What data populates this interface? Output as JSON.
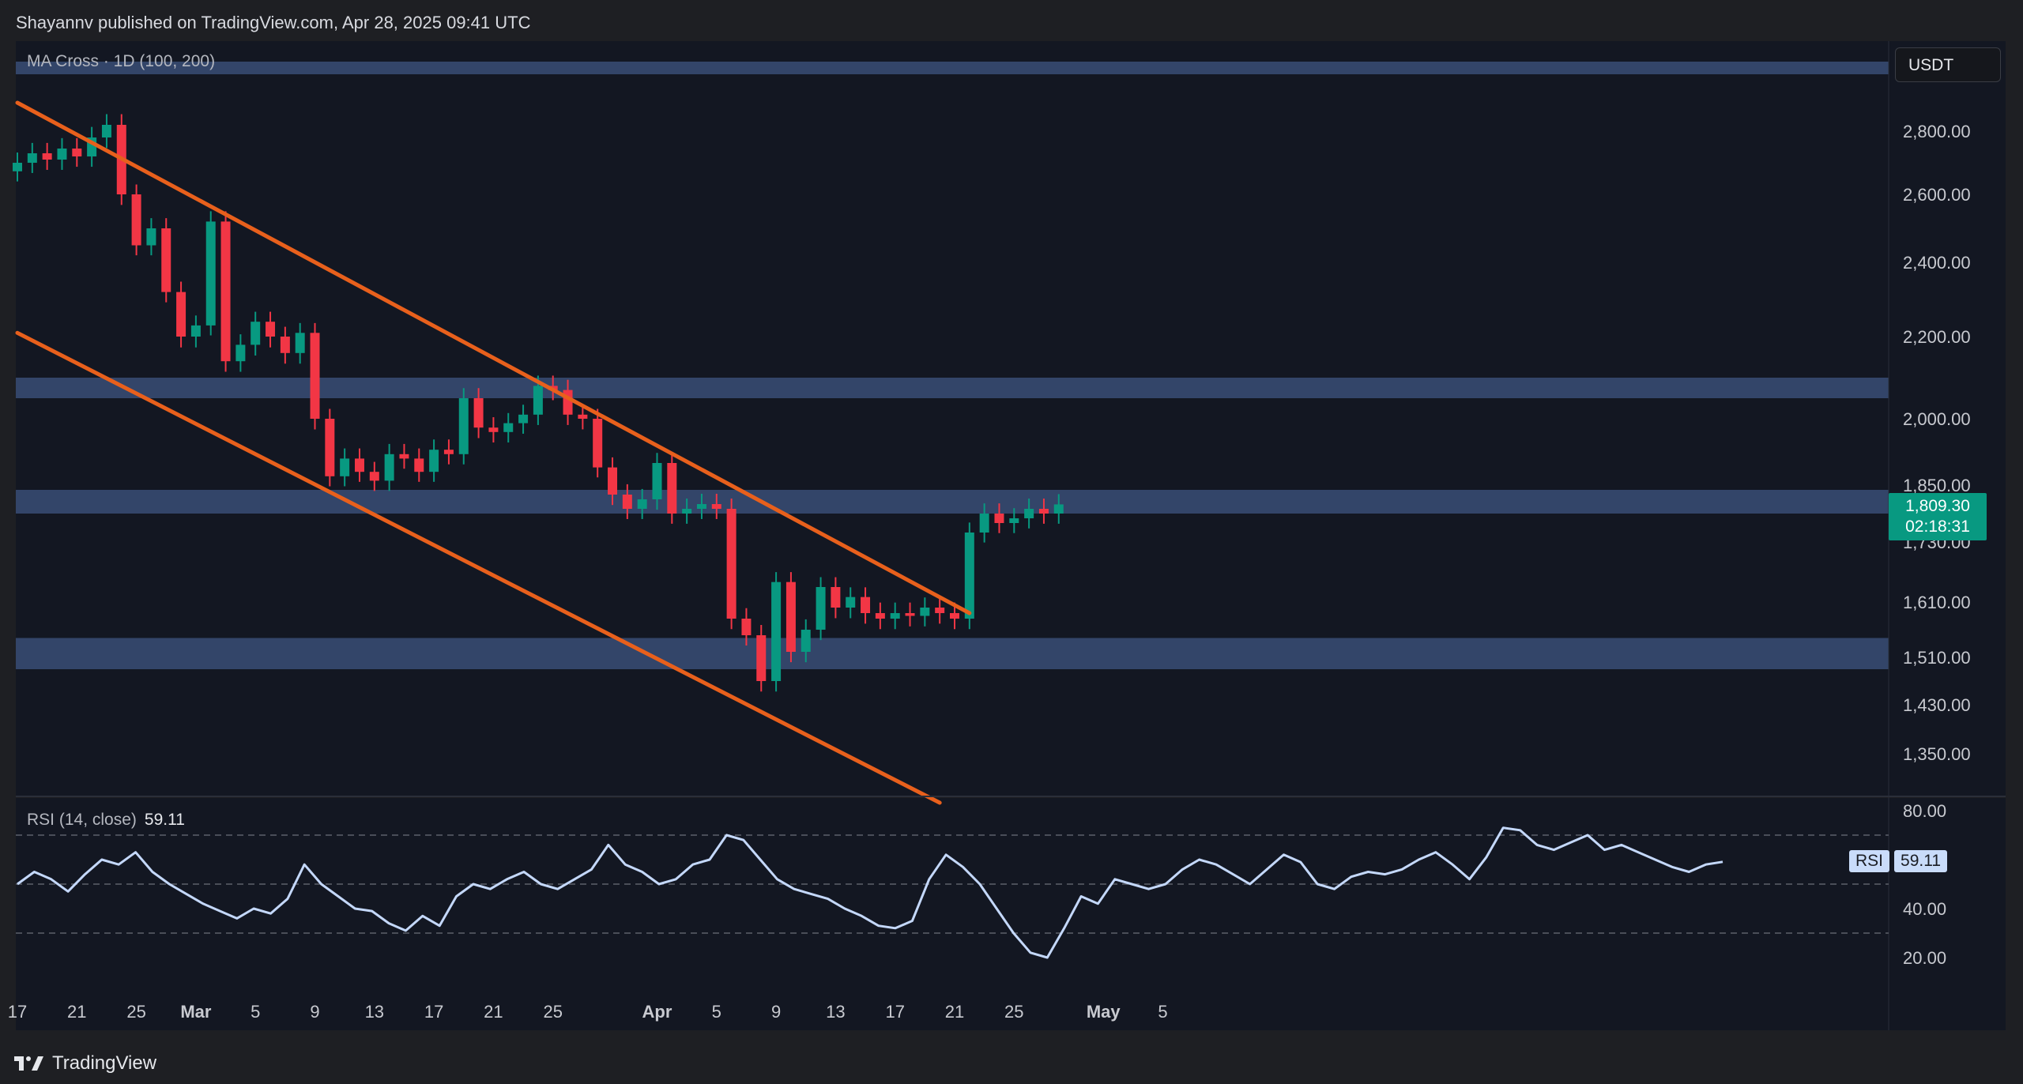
{
  "publisher_text": "Shayannv published on TradingView.com, Apr 28, 2025 09:41 UTC",
  "brand": "TradingView",
  "currency": "USDT",
  "price_indicator": {
    "label": "MA Cross · 1D (100, 200)"
  },
  "rsi_indicator": {
    "label": "RSI (14, close)",
    "value": "59.11",
    "tag_name": "RSI"
  },
  "last_price": {
    "price": "1,809.30",
    "countdown": "02:18:31"
  },
  "colors": {
    "background": "#131722",
    "frame": "#1e1f23",
    "up_candle": "#089981",
    "down_candle": "#f23645",
    "channel_line": "#e8601c",
    "zone_fill": "#3a4d75",
    "rsi_line": "#c4d8fb",
    "axis_text": "#c8cad0"
  },
  "chart_data": [
    {
      "type": "candlestick",
      "title": "MA Cross · 1D (100, 200)",
      "timeframe": "1D",
      "y_axis_ticks": [
        "2,800.00",
        "2,600.00",
        "2,400.00",
        "2,200.00",
        "2,000.00",
        "1,850.00",
        "1,730.00",
        "1,610.00",
        "1,510.00",
        "1,430.00",
        "1,350.00"
      ],
      "x_axis_ticks": [
        "17",
        "21",
        "25",
        "Mar",
        "5",
        "9",
        "13",
        "17",
        "21",
        "25",
        "Apr",
        "5",
        "9",
        "13",
        "17",
        "21",
        "25",
        "May",
        "5"
      ],
      "last_price": 1809.3,
      "series_close": [
        {
          "date": "2025-02-17",
          "close": 2700
        },
        {
          "date": "2025-02-18",
          "close": 2730
        },
        {
          "date": "2025-02-19",
          "close": 2710
        },
        {
          "date": "2025-02-20",
          "close": 2745
        },
        {
          "date": "2025-02-21",
          "close": 2720
        },
        {
          "date": "2025-02-22",
          "close": 2780
        },
        {
          "date": "2025-02-23",
          "close": 2820
        },
        {
          "date": "2025-02-24",
          "close": 2600
        },
        {
          "date": "2025-02-25",
          "close": 2450
        },
        {
          "date": "2025-02-26",
          "close": 2500
        },
        {
          "date": "2025-02-27",
          "close": 2320
        },
        {
          "date": "2025-02-28",
          "close": 2200
        },
        {
          "date": "2025-03-01",
          "close": 2230
        },
        {
          "date": "2025-03-02",
          "close": 2520
        },
        {
          "date": "2025-03-03",
          "close": 2140
        },
        {
          "date": "2025-03-04",
          "close": 2180
        },
        {
          "date": "2025-03-05",
          "close": 2240
        },
        {
          "date": "2025-03-06",
          "close": 2200
        },
        {
          "date": "2025-03-07",
          "close": 2160
        },
        {
          "date": "2025-03-08",
          "close": 2210
        },
        {
          "date": "2025-03-09",
          "close": 2000
        },
        {
          "date": "2025-03-10",
          "close": 1870
        },
        {
          "date": "2025-03-11",
          "close": 1910
        },
        {
          "date": "2025-03-12",
          "close": 1880
        },
        {
          "date": "2025-03-13",
          "close": 1860
        },
        {
          "date": "2025-03-14",
          "close": 1920
        },
        {
          "date": "2025-03-15",
          "close": 1910
        },
        {
          "date": "2025-03-16",
          "close": 1880
        },
        {
          "date": "2025-03-17",
          "close": 1930
        },
        {
          "date": "2025-03-18",
          "close": 1920
        },
        {
          "date": "2025-03-19",
          "close": 2050
        },
        {
          "date": "2025-03-20",
          "close": 1980
        },
        {
          "date": "2025-03-21",
          "close": 1970
        },
        {
          "date": "2025-03-22",
          "close": 1990
        },
        {
          "date": "2025-03-23",
          "close": 2010
        },
        {
          "date": "2025-03-24",
          "close": 2080
        },
        {
          "date": "2025-03-25",
          "close": 2070
        },
        {
          "date": "2025-03-26",
          "close": 2010
        },
        {
          "date": "2025-03-27",
          "close": 2000
        },
        {
          "date": "2025-03-28",
          "close": 1890
        },
        {
          "date": "2025-03-29",
          "close": 1830
        },
        {
          "date": "2025-03-30",
          "close": 1800
        },
        {
          "date": "2025-03-31",
          "close": 1820
        },
        {
          "date": "2025-04-01",
          "close": 1900
        },
        {
          "date": "2025-04-02",
          "close": 1790
        },
        {
          "date": "2025-04-03",
          "close": 1800
        },
        {
          "date": "2025-04-04",
          "close": 1810
        },
        {
          "date": "2025-04-05",
          "close": 1800
        },
        {
          "date": "2025-04-06",
          "close": 1580
        },
        {
          "date": "2025-04-07",
          "close": 1550
        },
        {
          "date": "2025-04-08",
          "close": 1470
        },
        {
          "date": "2025-04-09",
          "close": 1650
        },
        {
          "date": "2025-04-10",
          "close": 1520
        },
        {
          "date": "2025-04-11",
          "close": 1560
        },
        {
          "date": "2025-04-12",
          "close": 1640
        },
        {
          "date": "2025-04-13",
          "close": 1600
        },
        {
          "date": "2025-04-14",
          "close": 1620
        },
        {
          "date": "2025-04-15",
          "close": 1590
        },
        {
          "date": "2025-04-16",
          "close": 1580
        },
        {
          "date": "2025-04-17",
          "close": 1590
        },
        {
          "date": "2025-04-18",
          "close": 1585
        },
        {
          "date": "2025-04-19",
          "close": 1600
        },
        {
          "date": "2025-04-20",
          "close": 1590
        },
        {
          "date": "2025-04-21",
          "close": 1580
        },
        {
          "date": "2025-04-22",
          "close": 1750
        },
        {
          "date": "2025-04-23",
          "close": 1790
        },
        {
          "date": "2025-04-24",
          "close": 1770
        },
        {
          "date": "2025-04-25",
          "close": 1780
        },
        {
          "date": "2025-04-26",
          "close": 1800
        },
        {
          "date": "2025-04-27",
          "close": 1790
        },
        {
          "date": "2025-04-28",
          "close": 1809.3
        }
      ],
      "horizontal_zones": [
        {
          "label": "top-resistance",
          "from": 2980,
          "to": 3020
        },
        {
          "label": "resistance",
          "from": 2050,
          "to": 2100
        },
        {
          "label": "mid-resistance",
          "from": 1790,
          "to": 1840
        },
        {
          "label": "support",
          "from": 1490,
          "to": 1545
        }
      ],
      "channel_lines": [
        {
          "name": "upper-channel",
          "from": {
            "date": "2025-02-17",
            "price": 2890
          },
          "to": {
            "date": "2025-04-22",
            "price": 1590
          }
        },
        {
          "name": "lower-channel",
          "from": {
            "date": "2025-02-17",
            "price": 2210
          },
          "to": {
            "date": "2025-04-20",
            "price": 1270
          }
        }
      ]
    },
    {
      "type": "line",
      "title": "RSI (14, close)",
      "y_axis_ticks": [
        "80.00",
        "40.00",
        "20.00"
      ],
      "reference_levels": [
        70,
        50,
        30
      ],
      "latest_value": 59.11,
      "values": [
        50,
        55,
        52,
        47,
        54,
        60,
        58,
        63,
        55,
        50,
        46,
        42,
        39,
        36,
        40,
        38,
        44,
        58,
        50,
        45,
        40,
        39,
        34,
        31,
        37,
        33,
        45,
        50,
        48,
        52,
        55,
        50,
        48,
        52,
        56,
        66,
        58,
        55,
        50,
        52,
        58,
        60,
        70,
        68,
        60,
        52,
        48,
        46,
        44,
        40,
        37,
        33,
        32,
        35,
        52,
        62,
        57,
        50,
        40,
        30,
        22,
        20,
        32,
        45,
        42,
        52,
        50,
        48,
        50,
        56,
        60,
        58,
        54,
        50,
        56,
        62,
        59,
        50,
        48,
        53,
        55,
        54,
        56,
        60,
        63,
        58,
        52,
        61,
        73,
        72,
        66,
        64,
        67,
        70,
        64,
        66,
        63,
        60,
        57,
        55,
        58,
        59.11
      ]
    }
  ]
}
